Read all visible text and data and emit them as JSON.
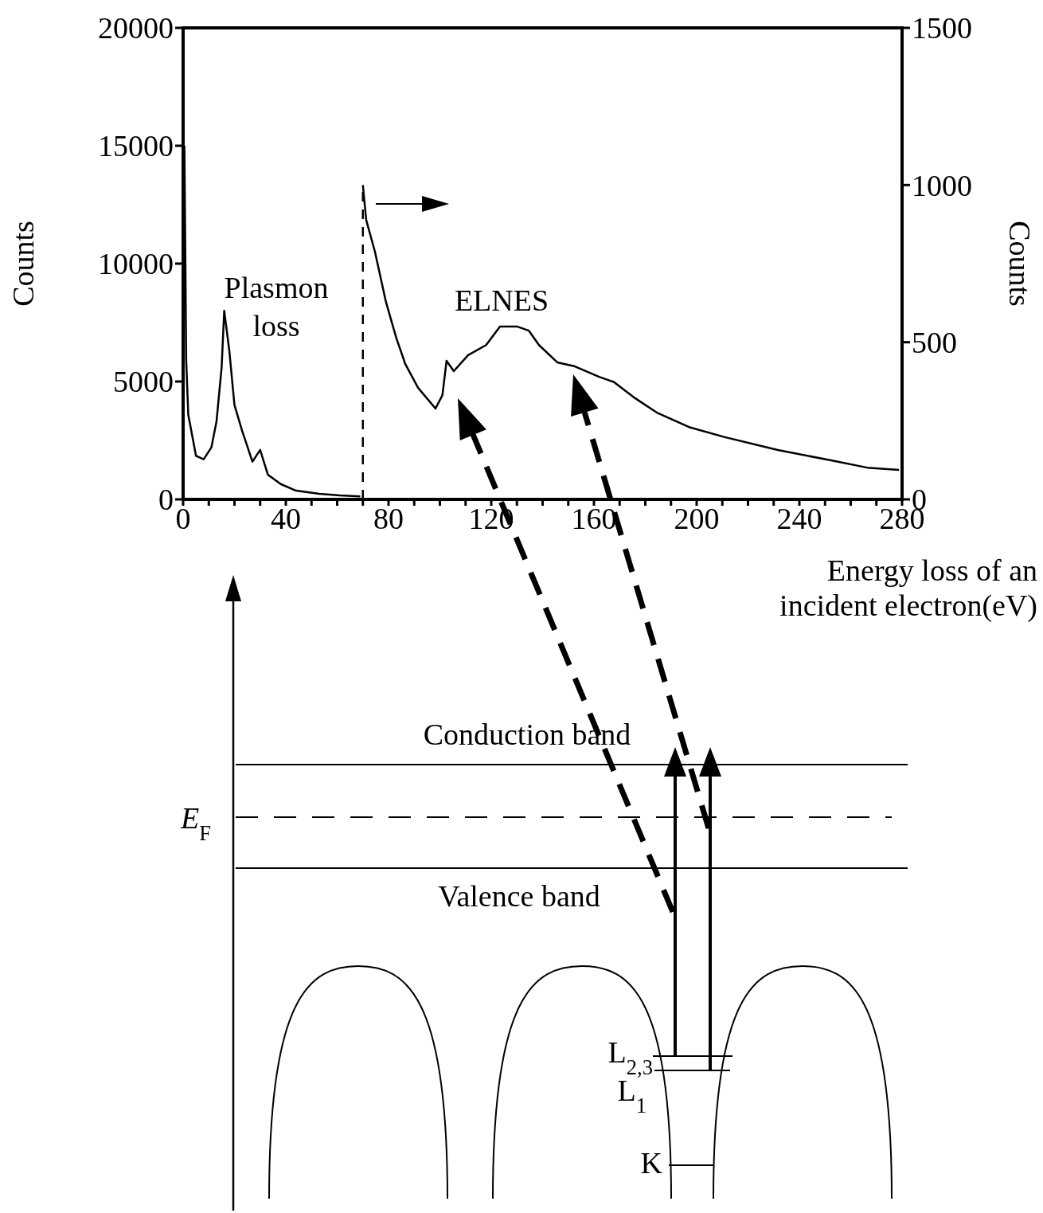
{
  "chart_data": {
    "type": "line",
    "xlabel": "Energy loss of an incident electron(eV)",
    "ylabel": "Counts",
    "y2label": "Counts",
    "xlim": [
      0,
      280
    ],
    "ylim": [
      0,
      20000
    ],
    "y2lim": [
      0,
      1500
    ],
    "xticks": [
      0,
      {
        "value": 10,
        "label": null
      },
      {
        "value": 20,
        "label": null
      },
      {
        "value": 30,
        "label": null
      },
      40,
      {
        "value": 50,
        "label": null
      },
      {
        "value": 60,
        "label": null
      },
      {
        "value": 70,
        "label": null
      },
      80,
      {
        "value": 90,
        "label": null
      },
      {
        "value": 100,
        "label": null
      },
      {
        "value": 110,
        "label": null
      },
      120,
      {
        "value": 130,
        "label": null
      },
      {
        "value": 140,
        "label": null
      },
      {
        "value": 150,
        "label": null
      },
      160,
      {
        "value": 170,
        "label": null
      },
      {
        "value": 180,
        "label": null
      },
      {
        "value": 190,
        "label": null
      },
      200,
      {
        "value": 210,
        "label": null
      },
      {
        "value": 220,
        "label": null
      },
      {
        "value": 230,
        "label": null
      },
      240,
      {
        "value": 250,
        "label": null
      },
      {
        "value": 260,
        "label": null
      },
      {
        "value": 270,
        "label": null
      },
      280
    ],
    "yticks": [
      0,
      5000,
      10000,
      15000,
      20000
    ],
    "y2ticks": [
      0,
      500,
      1000,
      1500
    ],
    "series": [
      {
        "color": "#000000",
        "x": [
          0.5,
          1.2,
          2,
          5,
          8,
          11,
          13,
          15,
          16,
          18,
          20,
          23,
          27,
          30,
          33,
          38,
          44,
          53,
          61,
          69
        ],
        "values": [
          15000,
          5900,
          3600,
          1850,
          1700,
          2200,
          3300,
          5600,
          8000,
          6300,
          4000,
          2900,
          1600,
          2100,
          1050,
          650,
          370,
          240,
          170,
          130
        ]
      },
      {
        "color": "#000000",
        "axis": "y2",
        "x": [
          70,
          71.3,
          74.7,
          79,
          83,
          86.5,
          91.5,
          98.3,
          101,
          102.6,
          105.4,
          111,
          118,
          123.4,
          130,
          134.6,
          138.6,
          145.7,
          152.6,
          162,
          167.8,
          176,
          184.5,
          197,
          211,
          231.6,
          252.4,
          266.4,
          278.8
        ],
        "values": [
          1000,
          889,
          788,
          628,
          514,
          431,
          355,
          289,
          332,
          441,
          408,
          459,
          491,
          550,
          550,
          537,
          491,
          436,
          423,
          390,
          373,
          322,
          276,
          230,
          198,
          157,
          124,
          101,
          94
        ]
      }
    ],
    "ref_lines": [
      {
        "axis": "x",
        "value": 70,
        "line_style": "dashed",
        "color": "#000000"
      }
    ],
    "annotations": [
      "Plasmon loss",
      "ELNES",
      "Conduction band",
      "Valence band",
      "E$_{F}$",
      "L$_{2,3}$",
      "L$_{1}$",
      "K"
    ],
    "legend": false,
    "grid": false
  }
}
